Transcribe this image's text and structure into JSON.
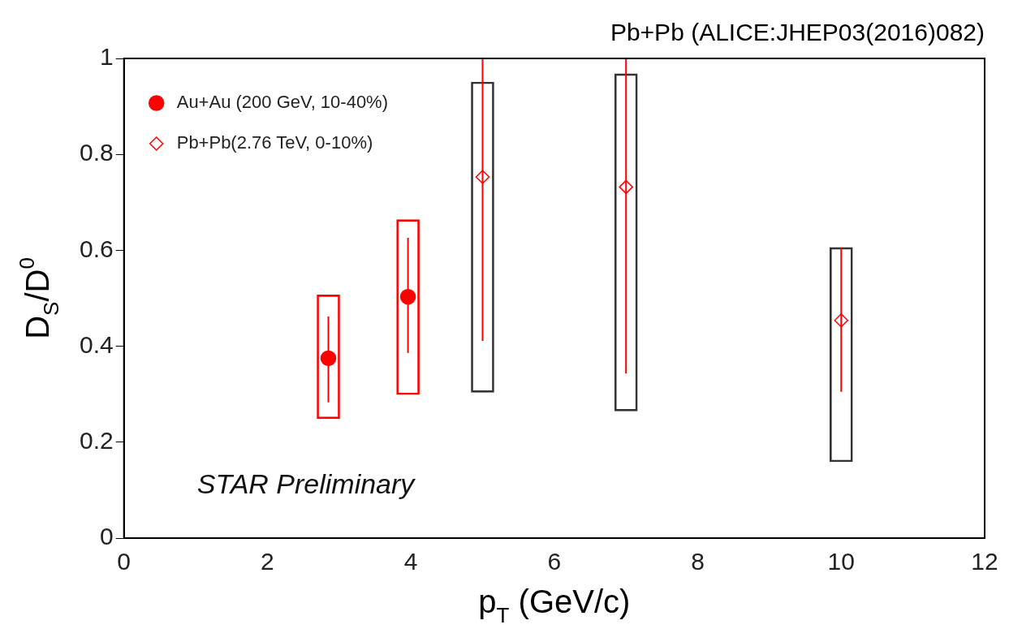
{
  "chart_data": {
    "type": "scatter",
    "title": "Pb+Pb (ALICE:JHEP03(2016)082)",
    "xlabel": "p$_{T}$ (GeV/c)",
    "ylabel": "D$_{S}$/D$^{0}$",
    "annotations": [
      "STAR Preliminary"
    ],
    "xlim": [
      0,
      12
    ],
    "xticks": [
      0,
      2,
      4,
      6,
      8,
      10,
      12
    ],
    "ylim": [
      0,
      1
    ],
    "yticks": [
      0,
      0.2,
      0.4,
      0.6,
      0.8,
      1
    ],
    "grid": false,
    "legend": "top left",
    "series": [
      {
        "name": "Au+Au (200 GeV, 10-40%)",
        "color": "#ff0000",
        "marker": "circle",
        "x": [
          2.85,
          3.96
        ],
        "values": [
          0.375,
          0.503
        ],
        "errors": [
          [
            0.283,
            0.462
          ],
          [
            0.386,
            0.626
          ]
        ]
      },
      {
        "name": "Pb+Pb(2.76 TeV, 0-10%)",
        "color": "#ff0000",
        "marker": "diamond",
        "x": [
          5,
          7,
          10
        ],
        "values": [
          0.753,
          0.732,
          0.454
        ],
        "errors": [
          [
            0.411,
            1
          ],
          [
            0.343,
            1
          ],
          [
            0.305,
            0.606
          ]
        ]
      },
      {
        "type": "bar",
        "color": "#ff0000",
        "x": [
          2.85,
          3.96
        ],
        "base": [
          0.249,
          0.299
        ],
        "values": [
          0.258,
          0.365
        ]
      },
      {
        "type": "bar",
        "color": "#333333",
        "x": [
          5,
          7,
          10
        ],
        "base": [
          0.304,
          0.265,
          0.159
        ],
        "values": [
          0.647,
          0.703,
          0.447
        ]
      }
    ]
  }
}
